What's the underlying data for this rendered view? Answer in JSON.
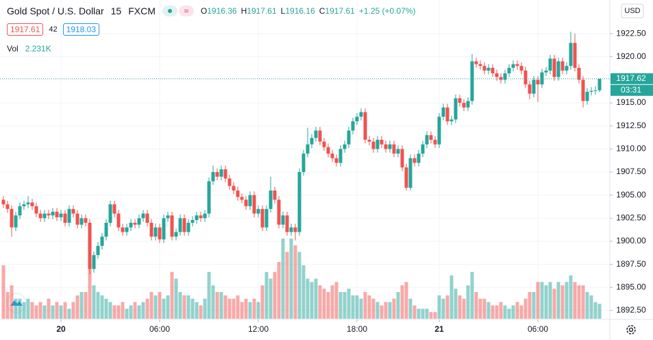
{
  "header": {
    "symbol": "Gold Spot / U.S. Dollar",
    "interval": "15",
    "exchange": "FXCM",
    "ohlc": [
      {
        "label": "O",
        "value": "1916.36"
      },
      {
        "label": "H",
        "value": "1917.61"
      },
      {
        "label": "L",
        "value": "1916.16"
      },
      {
        "label": "C",
        "value": "1917.61"
      }
    ],
    "change": "+1.25 (+0.07%)",
    "bid": "1917.61",
    "spread": "42",
    "ask": "1918.03",
    "volume_label": "Vol",
    "volume_value": "2.231K"
  },
  "chart_data": {
    "type": "candlestick",
    "currency": "USD",
    "up_color": "#26a69a",
    "down_color": "#ef5350",
    "ylim": [
      1891.6,
      1926.15
    ],
    "yticks": [
      {
        "value": 1892.5,
        "label": "1892.50"
      },
      {
        "value": 1895,
        "label": "1895.00"
      },
      {
        "value": 1897.5,
        "label": "1897.50"
      },
      {
        "value": 1900,
        "label": "1900.00"
      },
      {
        "value": 1902.5,
        "label": "1902.50"
      },
      {
        "value": 1905,
        "label": "1905.00"
      },
      {
        "value": 1907.5,
        "label": "1907.50"
      },
      {
        "value": 1910,
        "label": "1910.00"
      },
      {
        "value": 1912.5,
        "label": "1912.50"
      },
      {
        "value": 1915,
        "label": "1915.00"
      },
      {
        "value": 1917.5,
        "label": "1917.50"
      },
      {
        "value": 1920,
        "label": "1920.00"
      },
      {
        "value": 1922.5,
        "label": "1922.50"
      }
    ],
    "xticks": [
      {
        "value": 14,
        "label": "20"
      },
      {
        "value": 38,
        "label": "06:00"
      },
      {
        "value": 62,
        "label": "12:00"
      },
      {
        "value": 86,
        "label": "18:00"
      },
      {
        "value": 106,
        "label": "21"
      },
      {
        "value": 130,
        "label": "06:00"
      }
    ],
    "current_price": 1917.62,
    "countdown": "03:31",
    "open": [
      1904.5,
      1904,
      1903.5,
      1901.5,
      1902.8,
      1903.8,
      1904,
      1904.2,
      1903.8,
      1903,
      1902.5,
      1903,
      1902.8,
      1903.2,
      1902.6,
      1903,
      1902,
      1903.5,
      1903,
      1901.8,
      1902.5,
      1902,
      1897,
      1898.5,
      1899.5,
      1900.5,
      1902,
      1904,
      1903,
      1901.5,
      1901,
      1901.5,
      1902,
      1901.8,
      1902.5,
      1903,
      1902,
      1900.5,
      1901.5,
      1900.2,
      1902.5,
      1902.8,
      1900.5,
      1901,
      1902.5,
      1901,
      1902,
      1902.3,
      1902.8,
      1902.5,
      1903,
      1906.5,
      1907.5,
      1907,
      1907.8,
      1906.8,
      1906,
      1905.5,
      1904.8,
      1904.5,
      1903.8,
      1905,
      1903,
      1903.5,
      1901.5,
      1903.5,
      1905.5,
      1904.5,
      1901.8,
      1902.8,
      1901,
      1901.5,
      1901,
      1907.5,
      1909.5,
      1910.5,
      1911.2,
      1912,
      1910.8,
      1910.2,
      1909.5,
      1909,
      1908.5,
      1910,
      1910.5,
      1912,
      1913,
      1913.5,
      1914,
      1911,
      1910.8,
      1910,
      1911,
      1910.5,
      1910,
      1910.5,
      1909.5,
      1910,
      1908,
      1905.8,
      1909,
      1908.5,
      1909.5,
      1910.5,
      1911.5,
      1911,
      1910.5,
      1913.5,
      1914.5,
      1913,
      1913.2,
      1915.5,
      1915,
      1914.5,
      1915.2,
      1919.5,
      1919.2,
      1919,
      1918.5,
      1918.8,
      1918.2,
      1917.8,
      1917.5,
      1918.2,
      1918.8,
      1919.2,
      1919,
      1918.5,
      1917,
      1916,
      1917.5,
      1917,
      1918.3,
      1918.5,
      1919.8,
      1917.8,
      1919.5,
      1918.5,
      1919,
      1921.5,
      1918.8,
      1917.5,
      1915.2,
      1916.2,
      1916.3,
      1916.36
    ],
    "high": [
      1904.9,
      1904.4,
      1903.9,
      1903.2,
      1904.2,
      1904.4,
      1904.9,
      1904.6,
      1904.2,
      1903.4,
      1903.4,
      1903.4,
      1903.6,
      1903.6,
      1903.4,
      1903.4,
      1903.9,
      1903.9,
      1903.4,
      1902.9,
      1902.9,
      1902.4,
      1898.9,
      1899.9,
      1900.9,
      1902.4,
      1904.4,
      1904.4,
      1903.4,
      1901.9,
      1901.9,
      1902.4,
      1902.4,
      1902.9,
      1903.4,
      1903.4,
      1902.4,
      1901.9,
      1901.9,
      1902.9,
      1903.2,
      1903.2,
      1901.4,
      1902.9,
      1902.9,
      1902.4,
      1902.7,
      1903.2,
      1903.2,
      1903.4,
      1906.9,
      1908.2,
      1907.9,
      1908.2,
      1908.2,
      1907.2,
      1906.4,
      1905.9,
      1905.2,
      1904.9,
      1905.4,
      1905.4,
      1903.9,
      1903.9,
      1903.9,
      1907,
      1905.9,
      1904.9,
      1903.2,
      1903.2,
      1901.9,
      1901.9,
      1907.9,
      1909.9,
      1912.3,
      1911.6,
      1912.4,
      1912.4,
      1911.2,
      1910.6,
      1909.9,
      1909.4,
      1910.4,
      1910.9,
      1912.4,
      1913.4,
      1913.9,
      1914.4,
      1914.4,
      1911.4,
      1911.2,
      1911.4,
      1911.4,
      1910.9,
      1910.9,
      1910.9,
      1910.4,
      1910.4,
      1908.4,
      1909.4,
      1909.4,
      1909.9,
      1910.9,
      1911.9,
      1911.9,
      1911.4,
      1913.9,
      1914.9,
      1914.9,
      1913.6,
      1915.9,
      1915.9,
      1915.4,
      1915.6,
      1920.3,
      1919.9,
      1919.6,
      1919.4,
      1919.2,
      1919.2,
      1918.6,
      1918.2,
      1918.6,
      1919.2,
      1919.6,
      1919.6,
      1919.4,
      1918.9,
      1917.4,
      1917.9,
      1917.9,
      1918.7,
      1918.9,
      1920.2,
      1920.2,
      1919.9,
      1919.9,
      1919.4,
      1922.7,
      1922.5,
      1919.2,
      1917.9,
      1916.6,
      1916.7,
      1916.8,
      1917.61
    ],
    "low": [
      1903.6,
      1903.1,
      1900.5,
      1901.1,
      1902.4,
      1903.4,
      1903.6,
      1903.4,
      1902.6,
      1902.1,
      1902.1,
      1902.4,
      1902.4,
      1902.2,
      1902.2,
      1901.6,
      1901.6,
      1902.6,
      1901.4,
      1901.4,
      1901.6,
      1896.4,
      1896.6,
      1898.1,
      1899.1,
      1900.1,
      1901.6,
      1902.6,
      1901.1,
      1900.6,
      1900.6,
      1901.1,
      1901.4,
      1901.4,
      1902.1,
      1901.6,
      1900.1,
      1900.1,
      1899.8,
      1899.8,
      1902.1,
      1900.1,
      1900.1,
      1900.6,
      1900.6,
      1900.6,
      1901.6,
      1901.9,
      1902.1,
      1902.1,
      1902.6,
      1906.1,
      1906.6,
      1906.6,
      1906.4,
      1905.6,
      1905.1,
      1904.4,
      1904.1,
      1903.4,
      1903.4,
      1902.6,
      1902.6,
      1901.1,
      1901.1,
      1903.1,
      1904.1,
      1901.4,
      1901.4,
      1900.6,
      1900.6,
      1900.1,
      1900.6,
      1907.1,
      1909.1,
      1910.1,
      1910.8,
      1910.4,
      1909.8,
      1909.1,
      1908.6,
      1908.1,
      1908.1,
      1909.6,
      1910.1,
      1911.6,
      1912.6,
      1913.1,
      1910.6,
      1910.4,
      1909.6,
      1909.6,
      1910.1,
      1909.6,
      1909.6,
      1909.1,
      1909.1,
      1907.6,
      1905.5,
      1905.5,
      1908.1,
      1908.1,
      1909.1,
      1910.1,
      1910.6,
      1910.1,
      1910.1,
      1913.1,
      1912.6,
      1912.6,
      1912.8,
      1914.6,
      1914.1,
      1914.1,
      1914.8,
      1918.8,
      1918.6,
      1918.1,
      1918.1,
      1917.8,
      1917.4,
      1917.1,
      1917.1,
      1917.8,
      1918.4,
      1918.6,
      1918.1,
      1916.6,
      1915.4,
      1915.6,
      1915.1,
      1916.6,
      1917.9,
      1918.1,
      1917.4,
      1917.4,
      1918.1,
      1918.1,
      1918.6,
      1918.4,
      1917.1,
      1914.5,
      1914.8,
      1915.8,
      1915.9,
      1916.16
    ],
    "close": [
      1904,
      1903.5,
      1901.5,
      1902.8,
      1903.8,
      1904,
      1904.2,
      1903.8,
      1903,
      1902.5,
      1903,
      1902.8,
      1903.2,
      1902.6,
      1903,
      1902,
      1903.5,
      1903,
      1901.8,
      1902.5,
      1902,
      1897,
      1898.5,
      1899.5,
      1900.5,
      1902,
      1904,
      1903,
      1901.5,
      1901,
      1901.5,
      1902,
      1901.8,
      1902.5,
      1903,
      1902,
      1900.5,
      1901.5,
      1900.2,
      1902.5,
      1902.8,
      1900.5,
      1901,
      1902.5,
      1901,
      1902,
      1902.3,
      1902.8,
      1902.5,
      1903,
      1906.5,
      1907.5,
      1907,
      1907.8,
      1906.8,
      1906,
      1905.5,
      1904.8,
      1904.5,
      1903.8,
      1905,
      1903,
      1903.5,
      1901.5,
      1903.5,
      1905.5,
      1904.5,
      1901.8,
      1902.8,
      1901,
      1901.5,
      1901,
      1907.5,
      1909.5,
      1910.5,
      1911.2,
      1912,
      1910.8,
      1910.2,
      1909.5,
      1909,
      1908.5,
      1910,
      1910.5,
      1912,
      1913,
      1913.5,
      1914,
      1911,
      1910.8,
      1910,
      1911,
      1910.5,
      1910,
      1910.5,
      1909.5,
      1910,
      1908,
      1905.8,
      1909,
      1908.5,
      1909.5,
      1910.5,
      1911.5,
      1911,
      1910.5,
      1913.5,
      1914.5,
      1913,
      1913.2,
      1915.5,
      1915,
      1914.5,
      1915.2,
      1919.5,
      1919.2,
      1919,
      1918.5,
      1918.8,
      1918.2,
      1917.8,
      1917.5,
      1918.2,
      1918.8,
      1919.2,
      1919,
      1918.5,
      1917,
      1916,
      1917.5,
      1917,
      1918.3,
      1918.5,
      1919.8,
      1917.8,
      1919.5,
      1918.5,
      1919,
      1921.5,
      1918.8,
      1917.5,
      1915.2,
      1916.2,
      1916.3,
      1916.36,
      1917.61
    ],
    "volume": [
      8,
      4,
      5,
      3,
      3,
      2.5,
      3,
      2.5,
      2,
      2.5,
      2,
      3,
      2,
      2.5,
      2,
      2.5,
      1.5,
      2.5,
      3.5,
      4,
      4,
      9,
      5,
      4,
      3.5,
      3,
      2.5,
      2,
      2,
      2.5,
      1.5,
      2,
      2.5,
      2,
      2.5,
      3,
      4,
      3.5,
      4,
      3,
      3.5,
      7,
      6,
      4,
      3.5,
      3.5,
      3,
      2.5,
      2,
      3,
      7,
      5,
      4,
      4,
      3.5,
      3,
      3,
      3.5,
      2.5,
      3,
      2.5,
      3,
      2.5,
      5,
      7,
      6,
      7,
      8.5,
      12,
      10,
      12,
      11,
      10,
      8,
      6,
      5.5,
      6,
      5,
      4.5,
      4,
      5,
      5.5,
      4,
      4,
      4.5,
      3.5,
      3.5,
      3,
      4,
      3.5,
      3,
      2.5,
      2,
      2.5,
      2.5,
      3,
      4,
      5,
      5.5,
      3,
      2,
      1.5,
      1.5,
      1.5,
      1,
      1,
      3.5,
      3,
      3.5,
      6.5,
      4.5,
      3.5,
      3,
      5,
      7,
      4,
      3,
      3,
      2.5,
      2,
      2,
      2.5,
      2,
      1.5,
      2,
      2.5,
      2,
      3,
      4,
      4,
      5.5,
      5.5,
      5,
      5.5,
      4.5,
      5.5,
      5,
      5.5,
      6.5,
      5.5,
      5,
      5,
      4,
      3.5,
      2.5,
      2.231
    ]
  }
}
